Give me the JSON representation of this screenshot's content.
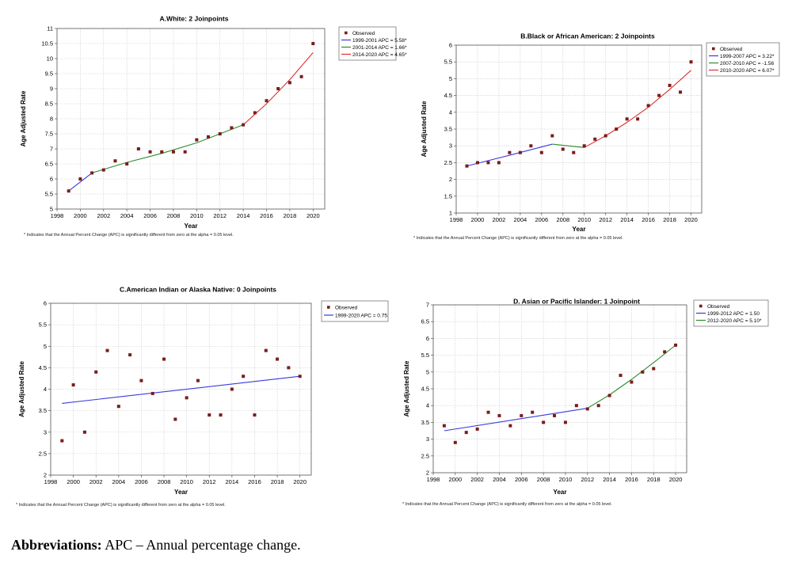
{
  "chart_data": [
    {
      "type": "scatter",
      "id": "A",
      "title": "A.White: 2 Joinpoints",
      "xlabel": "Year",
      "ylabel": "Age Adjusted Rate",
      "xlim": [
        1998,
        2021
      ],
      "ylim": [
        5,
        11
      ],
      "xticks": [
        1998,
        2000,
        2002,
        2004,
        2006,
        2008,
        2010,
        2012,
        2014,
        2016,
        2018,
        2020
      ],
      "yticks": [
        5,
        5.5,
        6,
        6.5,
        7,
        7.5,
        8,
        8.5,
        9,
        9.5,
        10,
        10.5,
        11
      ],
      "grid": true,
      "legend_position": "right-top",
      "observed": {
        "name": "Observed",
        "color": "#7b1c1c",
        "x": [
          1999,
          2000,
          2001,
          2002,
          2003,
          2004,
          2005,
          2006,
          2007,
          2008,
          2009,
          2010,
          2011,
          2012,
          2013,
          2014,
          2015,
          2016,
          2017,
          2018,
          2019,
          2020
        ],
        "y": [
          5.6,
          6.0,
          6.2,
          6.3,
          6.6,
          6.5,
          7.0,
          6.9,
          6.9,
          6.9,
          6.9,
          7.3,
          7.4,
          7.5,
          7.7,
          7.8,
          8.2,
          8.6,
          9.0,
          9.2,
          9.4,
          10.5
        ]
      },
      "segments": [
        {
          "name": "1999-2001 APC = 5.58*",
          "color": "#3a3adf",
          "x": [
            1999,
            2001
          ],
          "y": [
            5.6,
            6.2
          ]
        },
        {
          "name": "2001-2014 APC = 1.66*",
          "color": "#2e8b2e",
          "x": [
            2001,
            2004,
            2007,
            2010,
            2014
          ],
          "y": [
            6.2,
            6.55,
            6.85,
            7.2,
            7.8
          ]
        },
        {
          "name": "2014-2020 APC = 4.65*",
          "color": "#e03030",
          "x": [
            2014,
            2015,
            2016,
            2017,
            2018,
            2019,
            2020
          ],
          "y": [
            7.8,
            8.15,
            8.5,
            8.9,
            9.3,
            9.75,
            10.2
          ]
        }
      ],
      "footnote": "* Indicates that the Annual Percent Change (APC) is significantly different from zero at the alpha = 0.05 level."
    },
    {
      "type": "scatter",
      "id": "B",
      "title": "B.Black or African American: 2 Joinpoints",
      "xlabel": "Year",
      "ylabel": "Age Adjusted Rate",
      "xlim": [
        1998,
        2021
      ],
      "ylim": [
        1,
        6
      ],
      "xticks": [
        1998,
        2000,
        2002,
        2004,
        2006,
        2008,
        2010,
        2012,
        2014,
        2016,
        2018,
        2020
      ],
      "yticks": [
        1,
        1.5,
        2,
        2.5,
        3,
        3.5,
        4,
        4.5,
        5,
        5.5,
        6
      ],
      "grid": true,
      "legend_position": "right-top",
      "observed": {
        "name": "Observed",
        "color": "#7b1c1c",
        "x": [
          1999,
          2000,
          2001,
          2002,
          2003,
          2004,
          2005,
          2006,
          2007,
          2008,
          2009,
          2010,
          2011,
          2012,
          2013,
          2014,
          2015,
          2016,
          2017,
          2018,
          2019,
          2020
        ],
        "y": [
          2.4,
          2.5,
          2.5,
          2.5,
          2.8,
          2.8,
          3.0,
          2.8,
          3.3,
          2.9,
          2.8,
          3.0,
          3.2,
          3.3,
          3.5,
          3.8,
          3.8,
          4.2,
          4.5,
          4.8,
          4.6,
          5.5
        ]
      },
      "segments": [
        {
          "name": "1999-2007 APC = 3.22*",
          "color": "#3a3adf",
          "x": [
            1999,
            2003,
            2007
          ],
          "y": [
            2.4,
            2.72,
            3.05
          ]
        },
        {
          "name": "2007-2010 APC = -1.56",
          "color": "#2e8b2e",
          "x": [
            2007,
            2010
          ],
          "y": [
            3.05,
            2.95
          ]
        },
        {
          "name": "2010-2020 APC = 6.07*",
          "color": "#e03030",
          "x": [
            2010,
            2012,
            2014,
            2016,
            2018,
            2020
          ],
          "y": [
            2.95,
            3.3,
            3.7,
            4.15,
            4.68,
            5.25
          ]
        }
      ],
      "footnote": "* Indicates that the Annual Percent Change (APC) is significantly different from zero at the alpha = 0.05 level."
    },
    {
      "type": "scatter",
      "id": "C",
      "title": "C.American Indian or Alaska Native: 0 Joinpoints",
      "xlabel": "Year",
      "ylabel": "Age Adjusted Rate",
      "xlim": [
        1998,
        2021
      ],
      "ylim": [
        2,
        6
      ],
      "xticks": [
        1998,
        2000,
        2002,
        2004,
        2006,
        2008,
        2010,
        2012,
        2014,
        2016,
        2018,
        2020
      ],
      "yticks": [
        2,
        2.5,
        3,
        3.5,
        4,
        4.5,
        5,
        5.5,
        6
      ],
      "grid": true,
      "legend_position": "right-top",
      "observed": {
        "name": "Observed",
        "color": "#7b1c1c",
        "x": [
          1999,
          2000,
          2001,
          2002,
          2003,
          2004,
          2005,
          2006,
          2007,
          2008,
          2009,
          2010,
          2011,
          2012,
          2013,
          2014,
          2015,
          2016,
          2017,
          2018,
          2019,
          2020
        ],
        "y": [
          2.8,
          4.1,
          3.0,
          4.4,
          4.9,
          3.6,
          4.8,
          4.2,
          3.9,
          4.7,
          3.3,
          3.8,
          4.2,
          3.4,
          3.4,
          4.0,
          4.3,
          3.4,
          4.9,
          4.7,
          4.5,
          4.3
        ]
      },
      "segments": [
        {
          "name": "1999-2020 APC = 0.75",
          "color": "#3a3adf",
          "x": [
            1999,
            2020
          ],
          "y": [
            3.67,
            4.3
          ]
        }
      ],
      "footnote": "* Indicates that the Annual Percent Change (APC) is significantly different from zero at the alpha = 0.05 level."
    },
    {
      "type": "scatter",
      "id": "D",
      "title": "D. Asian or Pacific Islander: 1 Joinpoint",
      "xlabel": "Year",
      "ylabel": "Age Adjusted Rate",
      "xlim": [
        1998,
        2021
      ],
      "ylim": [
        2,
        7
      ],
      "xticks": [
        1998,
        2000,
        2002,
        2004,
        2006,
        2008,
        2010,
        2012,
        2014,
        2016,
        2018,
        2020
      ],
      "yticks": [
        2,
        2.5,
        3,
        3.5,
        4,
        4.5,
        5,
        5.5,
        6,
        6.5,
        7
      ],
      "grid": true,
      "legend_position": "right-top",
      "observed": {
        "name": "Observed",
        "color": "#7b1c1c",
        "x": [
          1999,
          2000,
          2001,
          2002,
          2003,
          2004,
          2005,
          2006,
          2007,
          2008,
          2009,
          2010,
          2011,
          2012,
          2013,
          2014,
          2015,
          2016,
          2017,
          2018,
          2019,
          2020
        ],
        "y": [
          3.4,
          2.9,
          3.2,
          3.3,
          3.8,
          3.7,
          3.4,
          3.7,
          3.8,
          3.5,
          3.7,
          3.5,
          4.0,
          3.9,
          4.0,
          4.3,
          4.9,
          4.7,
          5.0,
          5.1,
          5.6,
          5.8
        ]
      },
      "segments": [
        {
          "name": "1999-2012 APC = 1.50",
          "color": "#3a3adf",
          "x": [
            1999,
            2012
          ],
          "y": [
            3.25,
            3.92
          ]
        },
        {
          "name": "2012-2020 APC = 5.10*",
          "color": "#2e8b2e",
          "x": [
            2012,
            2014,
            2016,
            2018,
            2020
          ],
          "y": [
            3.92,
            4.32,
            4.78,
            5.28,
            5.8
          ]
        }
      ],
      "footnote": "* Indicates that the Annual Percent Change (APC) is significantly different from zero at the alpha = 0.05 level."
    }
  ],
  "caption": {
    "label": "Abbreviations:",
    "text": " APC – Annual percentage change."
  }
}
